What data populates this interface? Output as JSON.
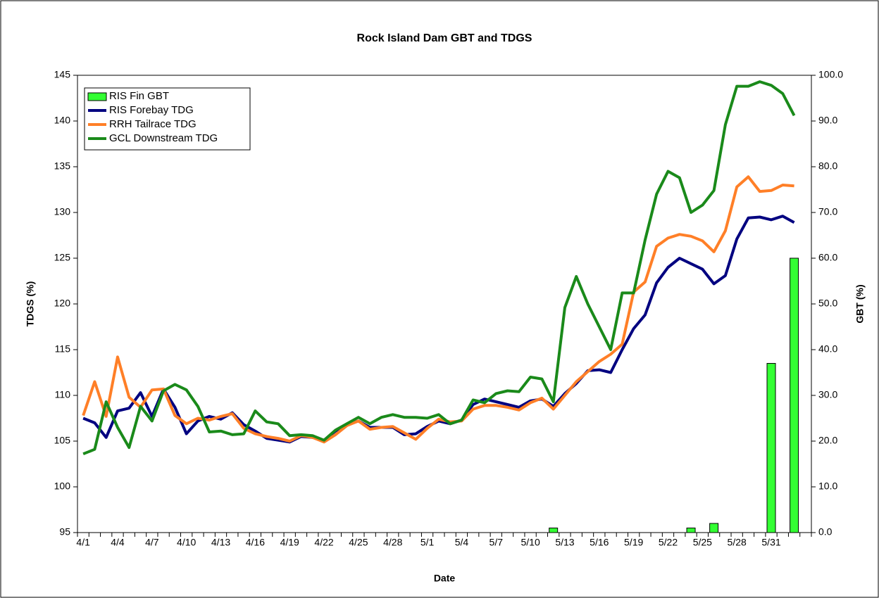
{
  "chart_data": {
    "type": "line",
    "title": "Rock Island Dam GBT and TDGS",
    "xlabel": "Date",
    "ylabel": "TDGS (%)",
    "y2label": "GBT (%)",
    "categories": [
      "4/1",
      null,
      null,
      "4/4",
      null,
      null,
      "4/7",
      null,
      null,
      "4/10",
      null,
      null,
      "4/13",
      null,
      null,
      "4/16",
      null,
      null,
      "4/19",
      null,
      null,
      "4/22",
      null,
      null,
      "4/25",
      null,
      null,
      "4/28",
      null,
      null,
      "5/1",
      null,
      null,
      "5/4",
      null,
      null,
      "5/7",
      null,
      null,
      "5/10",
      null,
      null,
      "5/13",
      null,
      null,
      "5/16",
      null,
      null,
      "5/19",
      null,
      null,
      "5/22",
      null,
      null,
      "5/25",
      null,
      null,
      "5/28",
      null,
      null,
      "5/31",
      null,
      null,
      null
    ],
    "ylim": [
      95,
      145
    ],
    "yticks": [
      95,
      100,
      105,
      110,
      115,
      120,
      125,
      130,
      135,
      140,
      145
    ],
    "y2lim": [
      0,
      100
    ],
    "y2ticks": [
      {
        "value": 0,
        "label": "0.0"
      },
      {
        "value": 10,
        "label": "10.0"
      },
      {
        "value": 20,
        "label": "20.0"
      },
      {
        "value": 30,
        "label": "30.0"
      },
      {
        "value": 40,
        "label": "40.0"
      },
      {
        "value": 50,
        "label": "50.0"
      },
      {
        "value": 60,
        "label": "60.0"
      },
      {
        "value": 70,
        "label": "70.0"
      },
      {
        "value": 80,
        "label": "80.0"
      },
      {
        "value": 90,
        "label": "90.0"
      },
      {
        "value": 100,
        "label": "100.0"
      }
    ],
    "legend": "upper left",
    "series": [
      {
        "name": "RIS Fin GBT",
        "type": "bar",
        "axis": "y2",
        "color": "#33ff33",
        "values": [
          0,
          0,
          0,
          0,
          0,
          0,
          0,
          0,
          0,
          0,
          0,
          0,
          0,
          0,
          0,
          0,
          0,
          0,
          0,
          0,
          0,
          0,
          0,
          0,
          0,
          0,
          0,
          0,
          0,
          0,
          0,
          0,
          0,
          0,
          0,
          0,
          0,
          0,
          0,
          0,
          0,
          1,
          0,
          0,
          0,
          0,
          0,
          0,
          0,
          0,
          0,
          0,
          0,
          1,
          0,
          2,
          0,
          0,
          0,
          0,
          37,
          0,
          60,
          null
        ]
      },
      {
        "name": "RIS Forebay TDG",
        "type": "line",
        "color": "#000080",
        "values": [
          107.5,
          107.0,
          105.4,
          108.3,
          108.6,
          110.3,
          107.7,
          110.7,
          108.7,
          105.8,
          107.2,
          107.7,
          107.4,
          108.1,
          106.8,
          106.1,
          105.3,
          105.1,
          104.9,
          105.5,
          105.4,
          105.1,
          106.1,
          106.8,
          107.2,
          106.5,
          106.5,
          106.5,
          105.7,
          105.8,
          106.6,
          107.2,
          106.9,
          107.3,
          109.0,
          109.6,
          109.3,
          109.0,
          108.7,
          109.4,
          109.6,
          108.8,
          110.2,
          111.3,
          112.7,
          112.8,
          112.5,
          115.0,
          117.3,
          118.8,
          122.3,
          124.0,
          125.0,
          124.4,
          123.8,
          122.2,
          123.1,
          127.1,
          129.4,
          129.5,
          129.2,
          129.6,
          128.9,
          null
        ]
      },
      {
        "name": "RRH Tailrace TDG",
        "type": "line",
        "color": "#ff7f27",
        "values": [
          107.8,
          111.5,
          107.7,
          114.2,
          109.8,
          108.7,
          110.6,
          110.7,
          107.8,
          106.9,
          107.5,
          107.3,
          107.7,
          108.0,
          106.4,
          105.8,
          105.5,
          105.3,
          105.0,
          105.6,
          105.4,
          104.9,
          105.7,
          106.7,
          107.2,
          106.3,
          106.5,
          106.6,
          105.9,
          105.2,
          106.4,
          107.4,
          107.1,
          107.2,
          108.5,
          108.9,
          108.9,
          108.7,
          108.4,
          109.2,
          109.7,
          108.5,
          110.0,
          111.5,
          112.6,
          113.7,
          114.5,
          115.6,
          121.3,
          122.4,
          126.3,
          127.2,
          127.6,
          127.4,
          126.9,
          125.7,
          128.0,
          132.8,
          133.9,
          132.3,
          132.4,
          133.0,
          132.9,
          null
        ]
      },
      {
        "name": "GCL Downstream TDG",
        "type": "line",
        "color": "#1a8a1a",
        "values": [
          103.6,
          104.1,
          109.3,
          106.5,
          104.3,
          108.8,
          107.2,
          110.5,
          111.2,
          110.6,
          108.8,
          106.0,
          106.1,
          105.7,
          105.8,
          108.3,
          107.1,
          106.9,
          105.6,
          105.7,
          105.6,
          105.1,
          106.2,
          106.9,
          107.6,
          106.9,
          107.6,
          107.9,
          107.6,
          107.6,
          107.5,
          107.9,
          106.9,
          107.3,
          109.5,
          109.2,
          110.2,
          110.5,
          110.4,
          112.0,
          111.8,
          109.3,
          119.6,
          123.0,
          120.0,
          117.5,
          115.0,
          121.2,
          121.2,
          127.0,
          132.0,
          134.5,
          133.8,
          130.0,
          130.8,
          132.4,
          139.6,
          143.8,
          143.8,
          144.3,
          143.9,
          143.0,
          140.6,
          null
        ]
      }
    ]
  }
}
